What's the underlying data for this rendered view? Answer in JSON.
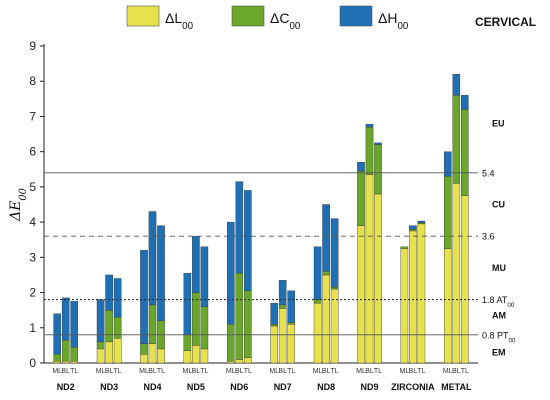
{
  "colors": {
    "dL": "#e6e14c",
    "dC": "#6aa62a",
    "dH": "#1f6fb5"
  },
  "legend": [
    {
      "key": "dL",
      "label": "ΔL",
      "sub": "00"
    },
    {
      "key": "dC",
      "label": "ΔC",
      "sub": "00"
    },
    {
      "key": "dH",
      "label": "ΔH",
      "sub": "00"
    }
  ],
  "corner_label": "CERVICAL",
  "ylabel": {
    "main": "ΔE",
    "sub": "00"
  },
  "chart_data": {
    "type": "bar",
    "stacked": true,
    "ylim": [
      0,
      9
    ],
    "yticks": [
      "0",
      "1",
      "2",
      "3",
      "4",
      "5",
      "6",
      "7",
      "8",
      "9"
    ],
    "groups": [
      {
        "name": "ND2",
        "bars": [
          {
            "label": "ML",
            "dL": 0.05,
            "dC": 0.2,
            "dH": 1.15
          },
          {
            "label": "BL",
            "dL": 0.05,
            "dC": 0.6,
            "dH": 1.2
          },
          {
            "label": "TL",
            "dL": 0.05,
            "dC": 0.4,
            "dH": 1.3
          }
        ]
      },
      {
        "name": "ND3",
        "bars": [
          {
            "label": "ML",
            "dL": 0.4,
            "dC": 0.2,
            "dH": 1.2
          },
          {
            "label": "BL",
            "dL": 0.6,
            "dC": 0.9,
            "dH": 1.0
          },
          {
            "label": "TL",
            "dL": 0.7,
            "dC": 0.6,
            "dH": 1.1
          }
        ]
      },
      {
        "name": "ND4",
        "bars": [
          {
            "label": "ML",
            "dL": 0.25,
            "dC": 0.3,
            "dH": 2.65
          },
          {
            "label": "BL",
            "dL": 0.55,
            "dC": 1.1,
            "dH": 2.65
          },
          {
            "label": "TL",
            "dL": 0.4,
            "dC": 0.8,
            "dH": 2.7
          }
        ]
      },
      {
        "name": "ND5",
        "bars": [
          {
            "label": "ML",
            "dL": 0.35,
            "dC": 0.45,
            "dH": 1.75
          },
          {
            "label": "BL",
            "dL": 0.5,
            "dC": 1.5,
            "dH": 1.6
          },
          {
            "label": "TL",
            "dL": 0.4,
            "dC": 1.2,
            "dH": 1.7
          }
        ]
      },
      {
        "name": "ND6",
        "bars": [
          {
            "label": "ML",
            "dL": 0.05,
            "dC": 1.05,
            "dH": 2.9
          },
          {
            "label": "BL",
            "dL": 0.1,
            "dC": 2.45,
            "dH": 2.6
          },
          {
            "label": "TL",
            "dL": 0.15,
            "dC": 1.9,
            "dH": 2.85
          }
        ]
      },
      {
        "name": "ND7",
        "bars": [
          {
            "label": "ML",
            "dL": 1.05,
            "dC": 0.05,
            "dH": 0.6
          },
          {
            "label": "BL",
            "dL": 1.55,
            "dC": 0.1,
            "dH": 0.7
          },
          {
            "label": "TL",
            "dL": 1.1,
            "dC": 0.05,
            "dH": 0.9
          }
        ]
      },
      {
        "name": "ND8",
        "bars": [
          {
            "label": "ML",
            "dL": 1.7,
            "dC": 0.1,
            "dH": 1.5
          },
          {
            "label": "BL",
            "dL": 2.5,
            "dC": 0.1,
            "dH": 1.9
          },
          {
            "label": "TL",
            "dL": 2.1,
            "dC": 0.05,
            "dH": 1.95
          }
        ]
      },
      {
        "name": "ND9",
        "bars": [
          {
            "label": "ML",
            "dL": 3.9,
            "dC": 1.55,
            "dH": 0.25
          },
          {
            "label": "BL",
            "dL": 5.35,
            "dC": 1.35,
            "dH": 0.08
          },
          {
            "label": "TL",
            "dL": 4.8,
            "dC": 1.4,
            "dH": 0.05
          }
        ]
      },
      {
        "name": "ZIRCONIA",
        "bars": [
          {
            "label": "ML",
            "dL": 3.25,
            "dC": 0.05,
            "dH": 0.0
          },
          {
            "label": "BL",
            "dL": 3.75,
            "dC": 0.05,
            "dH": 0.1
          },
          {
            "label": "TL",
            "dL": 3.95,
            "dC": 0.03,
            "dH": 0.05
          }
        ]
      },
      {
        "name": "METAL",
        "bars": [
          {
            "label": "ML",
            "dL": 3.25,
            "dC": 2.05,
            "dH": 0.7
          },
          {
            "label": "BL",
            "dL": 5.1,
            "dC": 2.5,
            "dH": 0.6
          },
          {
            "label": "TL",
            "dL": 4.75,
            "dC": 2.45,
            "dH": 0.4
          }
        ]
      }
    ],
    "reference_lines": [
      {
        "value": 5.4,
        "style": "solid",
        "label": "5.4",
        "label_sub": ""
      },
      {
        "value": 3.6,
        "style": "dashed",
        "label": "3.6",
        "label_sub": ""
      },
      {
        "value": 1.8,
        "style": "dotted",
        "label": "1.8  AT",
        "label_sub": "00"
      },
      {
        "value": 0.8,
        "style": "solid",
        "label": "0.8  PT",
        "label_sub": "00"
      }
    ],
    "zones": [
      {
        "label": "EU",
        "value": 6.8
      },
      {
        "label": "CU",
        "value": 4.5
      },
      {
        "label": "MU",
        "value": 2.7
      },
      {
        "label": "AM",
        "value": 1.35
      },
      {
        "label": "EM",
        "value": 0.3
      }
    ]
  }
}
